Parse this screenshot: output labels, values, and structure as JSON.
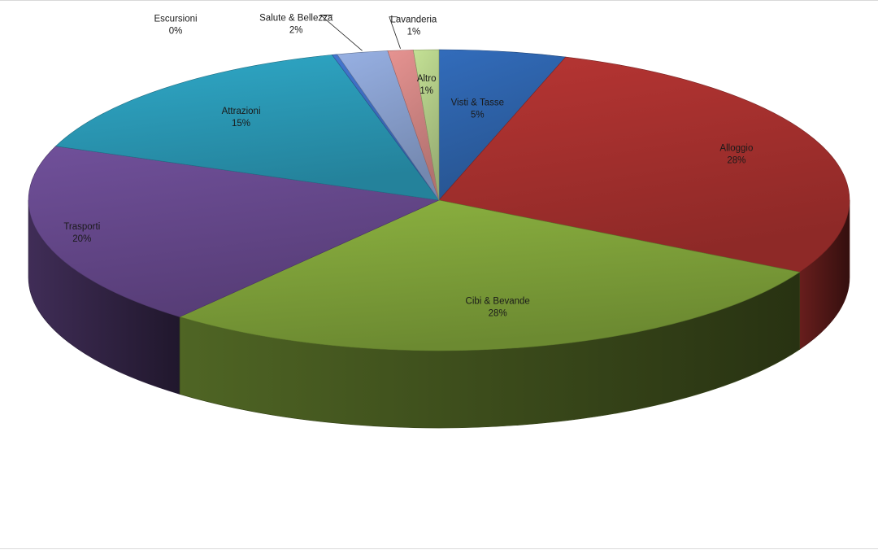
{
  "chart_data": {
    "type": "pie",
    "title": "",
    "categories": [
      "Visti & Tasse",
      "Alloggio",
      "Cibi & Bevande",
      "Trasporti",
      "Attrazioni",
      "Escursioni",
      "Salute & Bellezza",
      "Lavanderia",
      "Altro"
    ],
    "values": [
      5,
      28,
      28,
      20,
      15,
      0.2,
      2,
      1,
      1
    ],
    "labels": [
      {
        "name": "Visti & Tasse",
        "pct": "5%"
      },
      {
        "name": "Alloggio",
        "pct": "28%"
      },
      {
        "name": "Cibi & Bevande",
        "pct": "28%"
      },
      {
        "name": "Trasporti",
        "pct": "20%"
      },
      {
        "name": "Attrazioni",
        "pct": "15%"
      },
      {
        "name": "Escursioni",
        "pct": "0%"
      },
      {
        "name": "Salute & Bellezza",
        "pct": "2%"
      },
      {
        "name": "Lavanderia",
        "pct": "1%"
      },
      {
        "name": "Altro",
        "pct": "1%"
      }
    ],
    "colors": [
      "#2f66b0",
      "#ad3230",
      "#84a83c",
      "#6a4b91",
      "#2c9fbd",
      "#3f6fc4",
      "#8ea6d6",
      "#d98b89",
      "#b9d48d"
    ],
    "style": "3d"
  }
}
